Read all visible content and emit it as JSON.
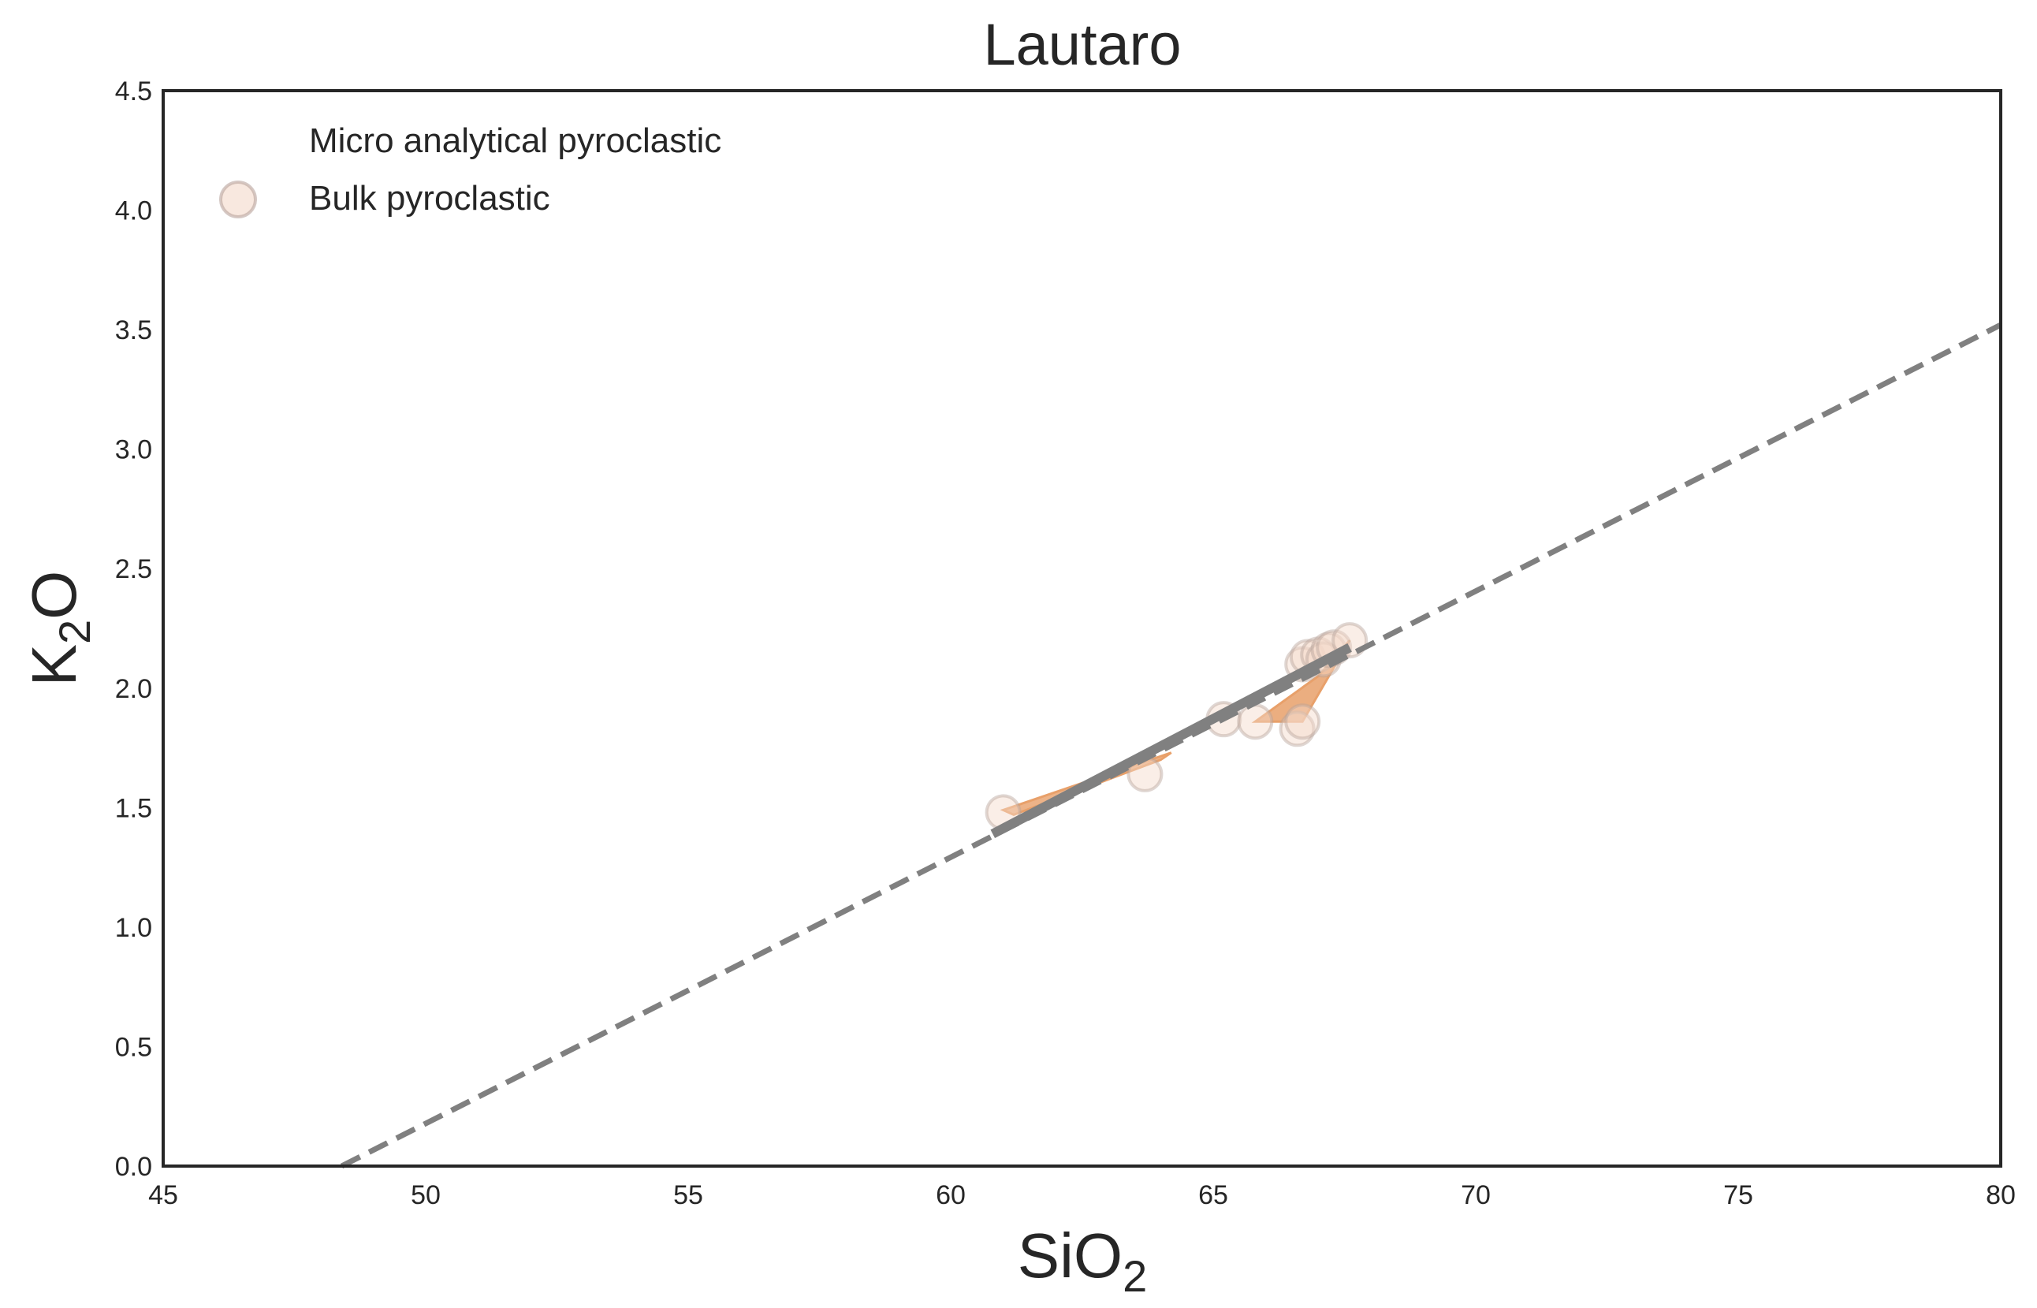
{
  "chart_data": {
    "type": "scatter",
    "title": "Lautaro",
    "xlabel": {
      "base": "SiO",
      "sub": "2"
    },
    "ylabel": {
      "base": "K",
      "sub": "2",
      "tail": "O"
    },
    "xlim": [
      45,
      80
    ],
    "ylim": [
      0,
      4.5
    ],
    "xticks": [
      45,
      50,
      55,
      60,
      65,
      70,
      75,
      80
    ],
    "xtick_labels": [
      "45",
      "50",
      "55",
      "60",
      "65",
      "70",
      "75",
      "80"
    ],
    "yticks": [
      0,
      0.5,
      1,
      1.5,
      2,
      2.5,
      3,
      3.5,
      4,
      4.5
    ],
    "ytick_labels": [
      "0.0",
      "0.5",
      "1.0",
      "1.5",
      "2.0",
      "2.5",
      "3.0",
      "3.5",
      "4.0",
      "4.5"
    ],
    "grid": false,
    "legend": {
      "position": "top-left",
      "entries": [
        {
          "label": "Micro analytical pyroclastic",
          "marker": "none"
        },
        {
          "label": "Bulk pyroclastic",
          "marker": "circle"
        }
      ]
    },
    "series": [
      {
        "name": "Bulk pyroclastic",
        "kind": "scatter",
        "color": "#f3d9c9",
        "edge_color": "#b9a49c",
        "alpha": 0.45,
        "x": [
          61.0,
          63.7,
          65.2,
          65.8,
          66.6,
          66.7,
          66.7,
          66.8,
          67.0,
          67.1,
          67.2,
          67.3,
          67.6
        ],
        "y": [
          1.48,
          1.64,
          1.87,
          1.86,
          1.83,
          1.86,
          2.1,
          2.13,
          2.14,
          2.12,
          2.16,
          2.17,
          2.2
        ]
      },
      {
        "name": "Bulk pyroclastic envelope",
        "kind": "polygon",
        "color": "#e8a06a",
        "alpha": 0.8,
        "x": [
          61.0,
          64.2,
          64.0,
          61.2
        ],
        "y": [
          1.49,
          1.73,
          1.7,
          1.47
        ]
      },
      {
        "name": "Bulk pyroclastic envelope 2",
        "kind": "polygon",
        "color": "#e8a06a",
        "alpha": 0.85,
        "x": [
          65.8,
          66.7,
          67.6,
          67.0
        ],
        "y": [
          1.86,
          1.86,
          2.2,
          2.05
        ]
      },
      {
        "name": "Reference line",
        "kind": "line",
        "style": "dashed",
        "color": "#808080",
        "x": [
          48.4,
          80
        ],
        "y": [
          0,
          3.52
        ]
      },
      {
        "name": "Fit line",
        "kind": "line",
        "style": "solid",
        "color": "#808080",
        "x": [
          60.8,
          67.6
        ],
        "y": [
          1.39,
          2.17
        ]
      }
    ]
  }
}
